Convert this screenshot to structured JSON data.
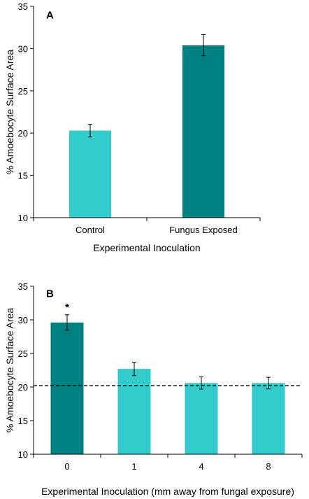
{
  "colors": {
    "cyan": "#33CCCC",
    "teal": "#008080",
    "axis": "#000000"
  },
  "chart_data": [
    {
      "type": "bar",
      "panel_label": "A",
      "categories": [
        "Control",
        "Fungus Exposed"
      ],
      "values": [
        20.3,
        30.4
      ],
      "errors": [
        0.75,
        1.25
      ],
      "bar_colors": [
        "#33CCCC",
        "#008080"
      ],
      "xlabel": "Experimental Inoculation",
      "ylabel": "% Amoebocyte Surface Area",
      "ylim": [
        10,
        35
      ],
      "yticks": [
        10,
        15,
        20,
        25,
        30,
        35
      ],
      "grid": false
    },
    {
      "type": "bar",
      "panel_label": "B",
      "categories": [
        "0",
        "1",
        "4",
        "8"
      ],
      "values": [
        29.6,
        22.7,
        20.6,
        20.6
      ],
      "errors": [
        1.15,
        1.0,
        0.9,
        0.85
      ],
      "bar_colors": [
        "#008080",
        "#33CCCC",
        "#33CCCC",
        "#33CCCC"
      ],
      "annotations": [
        {
          "category": "0",
          "text": "*"
        }
      ],
      "reference_line": 20.2,
      "xlabel": "Experimental Inoculation (mm away from fungal exposure)",
      "ylabel": "% Amoebocyte Surface Area",
      "ylim": [
        10,
        35
      ],
      "yticks": [
        10,
        15,
        20,
        25,
        30,
        35
      ],
      "grid": false
    }
  ]
}
